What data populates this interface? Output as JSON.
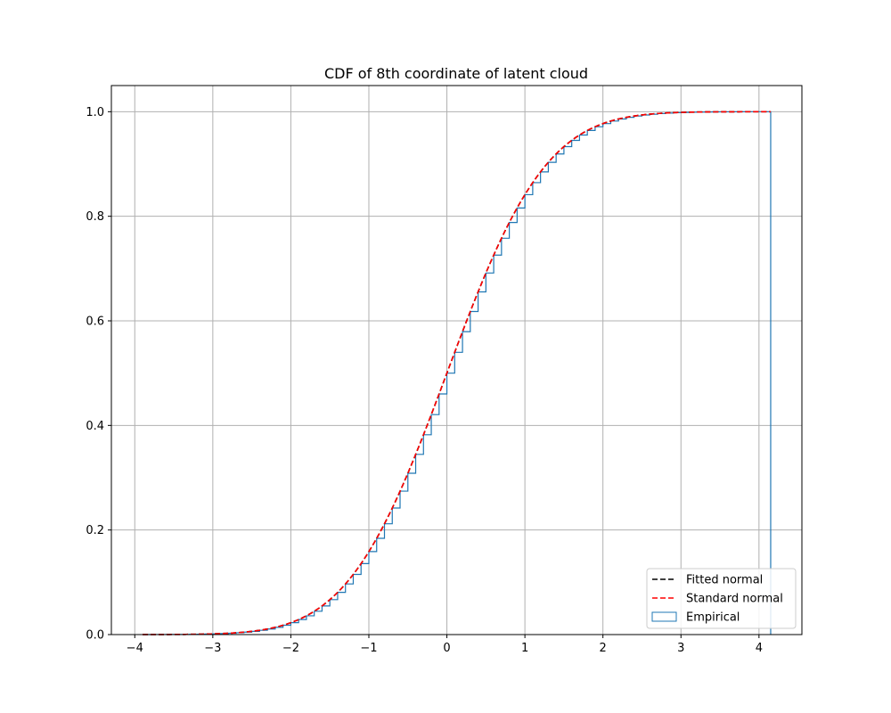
{
  "chart_data": {
    "type": "line",
    "title": "CDF of 8th coordinate of latent cloud",
    "xlabel": "",
    "ylabel": "",
    "xlim": [
      -4.3,
      4.55
    ],
    "ylim": [
      0.0,
      1.05
    ],
    "x_ticks": [
      -4,
      -3,
      -2,
      -1,
      0,
      1,
      2,
      3,
      4
    ],
    "x_tick_labels": [
      "−4",
      "−3",
      "−2",
      "−1",
      "0",
      "1",
      "2",
      "3",
      "4"
    ],
    "y_ticks": [
      0.0,
      0.2,
      0.4,
      0.6,
      0.8,
      1.0
    ],
    "y_tick_labels": [
      "0.0",
      "0.2",
      "0.4",
      "0.6",
      "0.8",
      "1.0"
    ],
    "grid": true,
    "legend_position": "lower-right",
    "series": [
      {
        "name": "Fitted normal",
        "kind": "normal_cdf",
        "mean": 0.0,
        "std": 1.0,
        "x_range": [
          -3.9,
          4.15
        ],
        "color": "#000000",
        "style": "dashed"
      },
      {
        "name": "Standard normal",
        "kind": "normal_cdf",
        "mean": 0.0,
        "std": 1.0,
        "x_range": [
          -3.9,
          4.15
        ],
        "color": "#ff0000",
        "style": "dashed"
      },
      {
        "name": "Empirical",
        "kind": "step_histogram",
        "color": "#1f77b4",
        "bin_width": 0.1,
        "x": [
          -3.9,
          -3.8,
          -3.7,
          -3.6,
          -3.5,
          -3.4,
          -3.3,
          -3.2,
          -3.1,
          -3.0,
          -2.9,
          -2.8,
          -2.7,
          -2.6,
          -2.5,
          -2.4,
          -2.3,
          -2.2,
          -2.1,
          -2.0,
          -1.9,
          -1.8,
          -1.7,
          -1.6,
          -1.5,
          -1.4,
          -1.3,
          -1.2,
          -1.1,
          -1.0,
          -0.9,
          -0.8,
          -0.7,
          -0.6,
          -0.5,
          -0.4,
          -0.3,
          -0.2,
          -0.1,
          0.0,
          0.1,
          0.2,
          0.3,
          0.4,
          0.5,
          0.6,
          0.7,
          0.8,
          0.9,
          1.0,
          1.1,
          1.2,
          1.3,
          1.4,
          1.5,
          1.6,
          1.7,
          1.8,
          1.9,
          2.0,
          2.1,
          2.2,
          2.3,
          2.4,
          2.5,
          2.6,
          2.7,
          2.8,
          2.9,
          3.0,
          3.1,
          3.2,
          3.3,
          3.4,
          3.5,
          3.6,
          3.7,
          3.8,
          3.9,
          4.0,
          4.1,
          4.15
        ],
        "y": [
          0.0,
          0.0001,
          0.0001,
          0.0002,
          0.0002,
          0.0003,
          0.0005,
          0.0007,
          0.001,
          0.0014,
          0.0019,
          0.0026,
          0.0035,
          0.0047,
          0.0062,
          0.0082,
          0.0107,
          0.0139,
          0.0179,
          0.0228,
          0.0287,
          0.0359,
          0.0446,
          0.0548,
          0.0668,
          0.0808,
          0.0968,
          0.1151,
          0.1357,
          0.1587,
          0.1841,
          0.2119,
          0.242,
          0.2743,
          0.3085,
          0.3446,
          0.3821,
          0.4207,
          0.4602,
          0.5,
          0.5398,
          0.5793,
          0.6179,
          0.6554,
          0.6915,
          0.7257,
          0.758,
          0.7881,
          0.8159,
          0.8413,
          0.8643,
          0.8849,
          0.9032,
          0.9192,
          0.9332,
          0.9452,
          0.9554,
          0.9641,
          0.9713,
          0.9772,
          0.9821,
          0.9861,
          0.9893,
          0.9918,
          0.9938,
          0.9953,
          0.9965,
          0.9974,
          0.9981,
          0.9987,
          0.999,
          0.9993,
          0.9995,
          0.9997,
          0.9998,
          0.9998,
          0.9999,
          0.9999,
          1.0,
          1.0,
          1.0,
          1.0
        ]
      }
    ]
  }
}
